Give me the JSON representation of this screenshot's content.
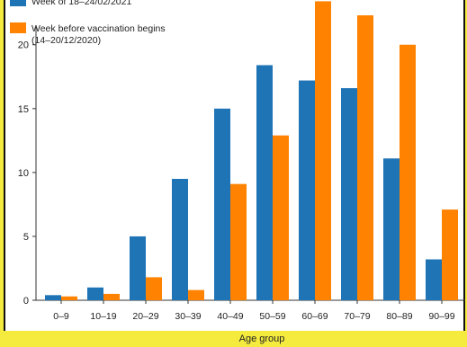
{
  "chart_data": {
    "type": "bar",
    "title": "",
    "xlabel": "Age group",
    "ylabel": "",
    "ylim": [
      0,
      23.5
    ],
    "yticks": [
      0,
      5,
      10,
      15,
      20
    ],
    "grid": false,
    "legend_position": "top-left",
    "categories": [
      "0–9",
      "10–19",
      "20–29",
      "30–39",
      "40–49",
      "50–59",
      "60–69",
      "70–79",
      "80–89",
      "90–99"
    ],
    "series": [
      {
        "name": "Week of 18–24/02/2021",
        "color": "#1f74b6",
        "values": [
          0.4,
          1.0,
          5.0,
          9.5,
          15.0,
          18.4,
          17.2,
          16.6,
          11.1,
          3.2
        ]
      },
      {
        "name": "Week before vaccination begins (14–20/12/2020)",
        "color": "#ff8200",
        "values": [
          0.3,
          0.5,
          1.8,
          0.8,
          9.1,
          12.9,
          23.4,
          22.3,
          20.0,
          7.1
        ]
      }
    ],
    "legend": [
      {
        "lines": [
          "Week of 18–24/02/2021"
        ]
      },
      {
        "lines": [
          "Week before vaccination begins",
          "(14–20/12/2020)"
        ]
      }
    ]
  }
}
